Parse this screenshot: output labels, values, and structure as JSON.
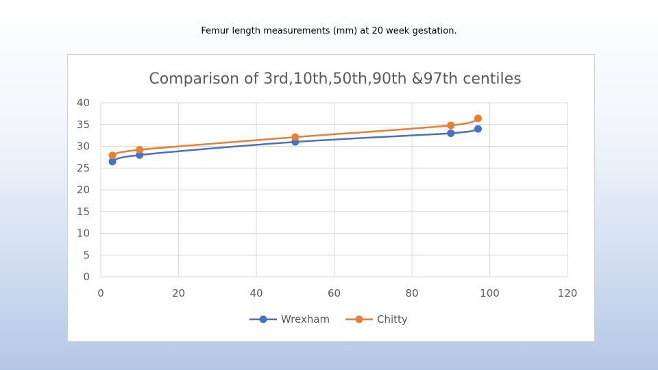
{
  "slide": {
    "title": "Femur length measurements (mm) at 20 week gestation."
  },
  "chart_data": {
    "type": "line",
    "title": "Comparison of 3rd,10th,50th,90th &97th centiles",
    "xlabel": "",
    "ylabel": "",
    "xlim": [
      0,
      120
    ],
    "ylim": [
      0,
      40
    ],
    "xticks": [
      "0",
      "20",
      "40",
      "60",
      "80",
      "100",
      "120"
    ],
    "yticks": [
      "0",
      "5",
      "10",
      "15",
      "20",
      "25",
      "30",
      "35",
      "40"
    ],
    "grid": true,
    "legend": "bottom",
    "series": [
      {
        "name": "Wrexham",
        "color": "#4472c4",
        "x": [
          3,
          10,
          50,
          90,
          97
        ],
        "y": [
          26.5,
          28,
          31,
          33,
          34
        ]
      },
      {
        "name": "Chitty",
        "color": "#ed7d31",
        "x": [
          3,
          10,
          50,
          90,
          97
        ],
        "y": [
          27.9,
          29.2,
          32.1,
          34.8,
          36.4
        ]
      }
    ]
  }
}
